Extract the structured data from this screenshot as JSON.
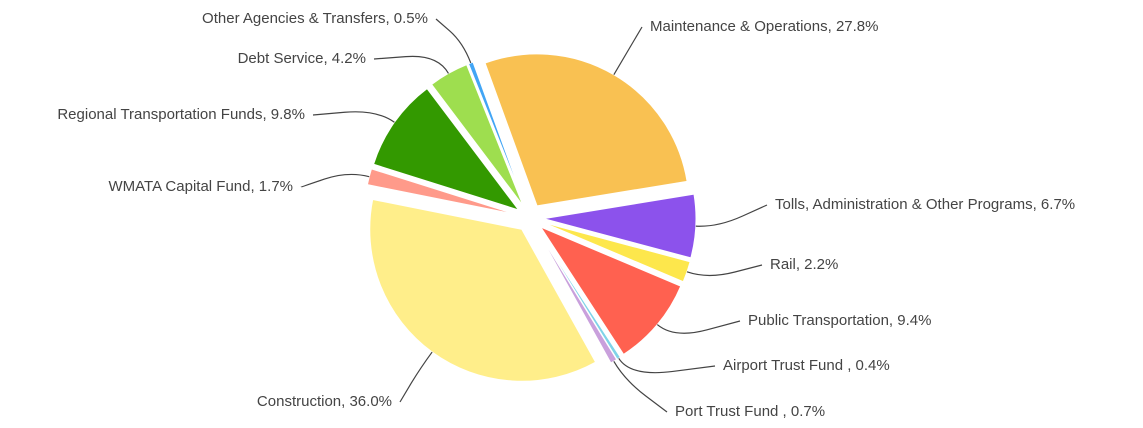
{
  "chart_data": {
    "type": "pie",
    "values": [
      27.8,
      6.7,
      2.2,
      9.4,
      0.4,
      0.7,
      36.0,
      1.7,
      9.8,
      4.2,
      0.5
    ],
    "value_labels": [
      "Maintenance & Operations, 27.8%",
      "Tolls, Administration & Other Programs, 6.7%",
      "Rail, 2.2%",
      "Public Transportation, 9.4%",
      "Airport Trust Fund , 0.4%",
      "Port Trust Fund , 0.7%",
      "Construction, 36.0%",
      "WMATA Capital Fund, 1.7%",
      "Regional Transportation Funds, 9.8%",
      "Debt Service, 4.2%",
      "Other Agencies & Transfers, 0.5%"
    ],
    "colors": [
      "#f9c152",
      "#8c52ec",
      "#fde74c",
      "#ff6150",
      "#7fd3e8",
      "#c9a0dc",
      "#ffee8a",
      "#ff9a8a",
      "#339900",
      "#9ede4f",
      "#42a5f5"
    ]
  }
}
